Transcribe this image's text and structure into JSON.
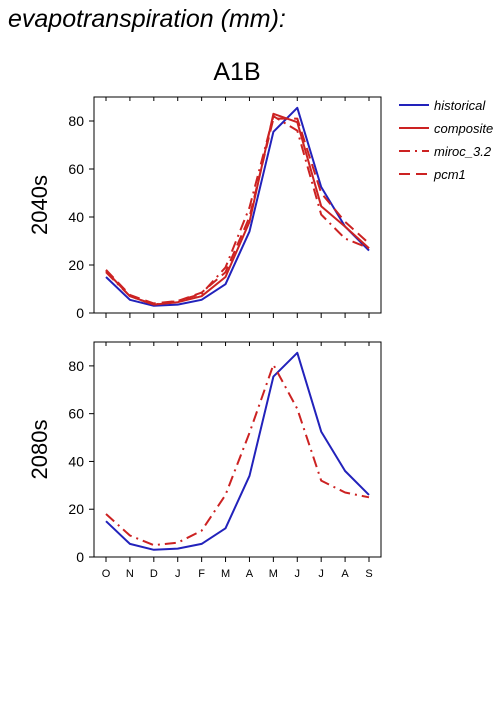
{
  "header": {
    "variable_label": "evapotranspiration (mm):",
    "scenario": "A1B"
  },
  "legend": [
    {
      "label": "historical",
      "color": "#2222bb",
      "dash": "solid"
    },
    {
      "label": "composite",
      "color": "#cc2222",
      "dash": "solid"
    },
    {
      "label": "miroc_3.2",
      "color": "#cc2222",
      "dash": "dashdot"
    },
    {
      "label": "pcm1",
      "color": "#cc2222",
      "dash": "dashed"
    }
  ],
  "chart_data": [
    {
      "type": "line",
      "panel_label": "2040s",
      "x": [
        "O",
        "N",
        "D",
        "J",
        "F",
        "M",
        "A",
        "M",
        "J",
        "J",
        "A",
        "S"
      ],
      "ylim": [
        0,
        90
      ],
      "yticks": [
        0,
        20,
        40,
        60,
        80
      ],
      "show_xtick_labels": false,
      "series": [
        {
          "name": "historical",
          "color": "#2222bb",
          "dash": "solid",
          "values": [
            15,
            5.5,
            3,
            3.5,
            5.5,
            12,
            34,
            75.5,
            85.5,
            52.5,
            36,
            26
          ]
        },
        {
          "name": "composite",
          "color": "#cc2222",
          "dash": "solid",
          "values": [
            17.5,
            7,
            3.5,
            4.5,
            7,
            15,
            38,
            83,
            79.5,
            44.5,
            36,
            27
          ]
        },
        {
          "name": "miroc_3.2",
          "color": "#cc2222",
          "dash": "dashdot",
          "values": [
            17,
            7,
            3.5,
            5,
            8,
            19,
            44,
            82,
            76,
            41,
            31,
            27
          ]
        },
        {
          "name": "pcm1",
          "color": "#cc2222",
          "dash": "dashed",
          "values": [
            18,
            7.5,
            4,
            5,
            8.5,
            17,
            40,
            81,
            81,
            50,
            38,
            29
          ]
        }
      ]
    },
    {
      "type": "line",
      "panel_label": "2080s",
      "x": [
        "O",
        "N",
        "D",
        "J",
        "F",
        "M",
        "A",
        "M",
        "J",
        "J",
        "A",
        "S"
      ],
      "ylim": [
        0,
        90
      ],
      "yticks": [
        0,
        20,
        40,
        60,
        80
      ],
      "show_xtick_labels": true,
      "series": [
        {
          "name": "historical",
          "color": "#2222bb",
          "dash": "solid",
          "values": [
            15,
            5.5,
            3,
            3.5,
            5.5,
            12,
            34,
            75.5,
            85.5,
            52.5,
            36,
            26
          ]
        },
        {
          "name": "miroc_3.2",
          "color": "#cc2222",
          "dash": "dashdot",
          "values": [
            18,
            9,
            5,
            6,
            11,
            26,
            52,
            80.5,
            62,
            32,
            27,
            25
          ]
        }
      ]
    }
  ]
}
